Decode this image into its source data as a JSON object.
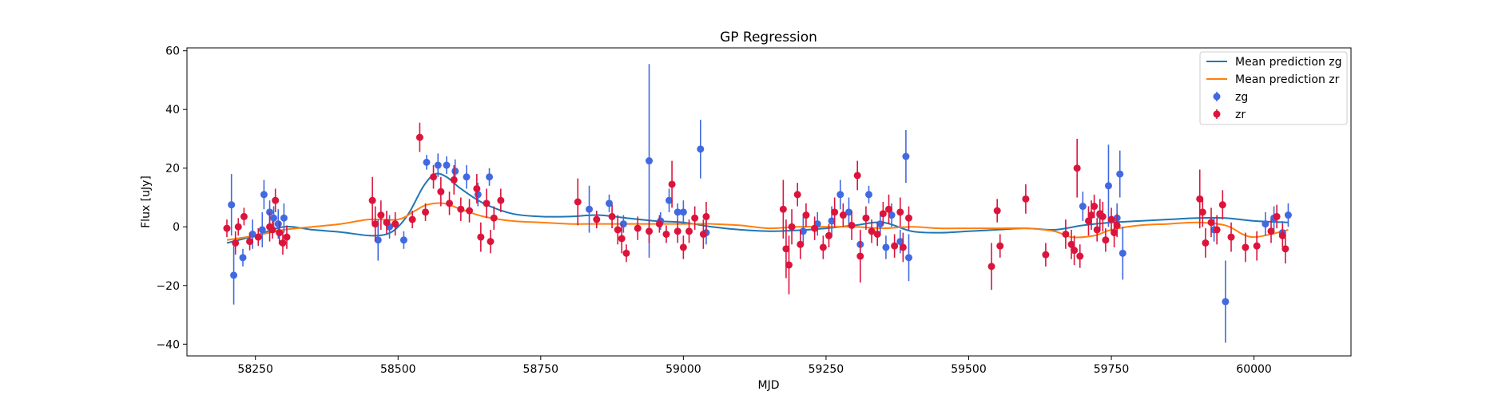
{
  "chart_data": {
    "type": "scatter",
    "title": "GP Regression",
    "xlabel": "MJD",
    "ylabel": "Flux [uJy]",
    "xlim": [
      58130,
      60170
    ],
    "ylim": [
      -44,
      61
    ],
    "xticks": [
      58250,
      58500,
      58750,
      59000,
      59250,
      59500,
      59750,
      60000
    ],
    "yticks": [
      -40,
      -20,
      0,
      20,
      40,
      60
    ],
    "grid": false,
    "legend_position": "top-right",
    "colors": {
      "mean_zg": "#1f77b4",
      "mean_zr": "#ff7f0e",
      "zg": "#4169e1",
      "zr": "#dc143c"
    },
    "mean_prediction": [
      {
        "name": "Mean prediction zg",
        "x": [
          58200,
          58250,
          58300,
          58350,
          58400,
          58450,
          58480,
          58500,
          58520,
          58545,
          58565,
          58585,
          58610,
          58650,
          58700,
          58750,
          58800,
          58850,
          58900,
          58950,
          59000,
          59050,
          59100,
          59150,
          59200,
          59250,
          59300,
          59350,
          59400,
          59450,
          59500,
          59550,
          59600,
          59650,
          59700,
          59750,
          59800,
          59850,
          59900,
          59950,
          60000,
          60060
        ],
        "y": [
          -5.5,
          -3,
          0,
          -1,
          -1.8,
          -3,
          -2.5,
          0,
          5,
          14,
          18,
          17,
          13,
          8,
          4.5,
          3.5,
          3.5,
          4,
          3,
          2,
          1.5,
          0,
          -1,
          -1.5,
          -1.2,
          -0.5,
          0.5,
          1.5,
          -1.5,
          -2,
          -1.5,
          -1,
          -0.5,
          -1,
          0.5,
          1.5,
          2,
          2.5,
          3,
          3,
          2,
          1.5
        ]
      },
      {
        "name": "Mean prediction zr",
        "x": [
          58200,
          58250,
          58300,
          58350,
          58400,
          58450,
          58500,
          58530,
          58550,
          58580,
          58610,
          58650,
          58700,
          58750,
          58800,
          58850,
          58900,
          58950,
          59000,
          59050,
          59100,
          59150,
          59200,
          59250,
          59300,
          59350,
          59400,
          59450,
          59500,
          59550,
          59600,
          59650,
          59680,
          59720,
          59750,
          59800,
          59850,
          59900,
          59950,
          59980,
          60000,
          60030,
          60060
        ],
        "y": [
          -4.5,
          -3,
          -1,
          0,
          1,
          2.5,
          2.5,
          5.5,
          7.5,
          8,
          6,
          3.5,
          2,
          1.5,
          1,
          1,
          1,
          1,
          1,
          1,
          0.5,
          -0.5,
          0,
          0,
          0,
          -0.5,
          0,
          -0.5,
          -0.5,
          -0.5,
          -0.5,
          -1.5,
          -3.5,
          -3,
          -1,
          0.5,
          1,
          1.5,
          0.5,
          -2.5,
          -3.5,
          -2.5,
          -1
        ]
      }
    ],
    "series": [
      {
        "name": "zg",
        "points": [
          [
            58208,
            7.5,
            10.5
          ],
          [
            58212,
            -16.5,
            10
          ],
          [
            58228,
            -10.5,
            3
          ],
          [
            58245,
            -2.5,
            5
          ],
          [
            58262,
            -1,
            6
          ],
          [
            58265,
            11,
            5
          ],
          [
            58275,
            5,
            4
          ],
          [
            58282,
            3,
            4
          ],
          [
            58290,
            1,
            5
          ],
          [
            58300,
            3,
            5
          ],
          [
            58465,
            -4.5,
            7
          ],
          [
            58485,
            0,
            4
          ],
          [
            58510,
            -4.5,
            3
          ],
          [
            58550,
            22,
            2.5
          ],
          [
            58570,
            21,
            4
          ],
          [
            58585,
            21,
            3
          ],
          [
            58600,
            19,
            4
          ],
          [
            58620,
            17,
            4
          ],
          [
            58640,
            11,
            4
          ],
          [
            58660,
            17,
            3
          ],
          [
            58835,
            6,
            8
          ],
          [
            58870,
            8,
            3
          ],
          [
            58895,
            1,
            3
          ],
          [
            58940,
            22.5,
            33
          ],
          [
            58960,
            2,
            3
          ],
          [
            58975,
            9,
            4
          ],
          [
            58990,
            5,
            3
          ],
          [
            59000,
            5,
            4
          ],
          [
            59030,
            26.5,
            10
          ],
          [
            59040,
            -2,
            4
          ],
          [
            59210,
            -1.5,
            5
          ],
          [
            59235,
            1,
            4
          ],
          [
            59260,
            2,
            5
          ],
          [
            59275,
            11,
            5
          ],
          [
            59290,
            5,
            5
          ],
          [
            59310,
            -6,
            4
          ],
          [
            59325,
            11,
            3
          ],
          [
            59345,
            1,
            4
          ],
          [
            59355,
            -7,
            4
          ],
          [
            59365,
            4,
            4
          ],
          [
            59380,
            -5,
            4
          ],
          [
            59390,
            24,
            9
          ],
          [
            59395,
            -10.5,
            8
          ],
          [
            59700,
            7,
            5
          ],
          [
            59730,
            4,
            5
          ],
          [
            59745,
            14,
            14
          ],
          [
            59760,
            3,
            5
          ],
          [
            59765,
            18,
            8
          ],
          [
            59770,
            -9,
            9
          ],
          [
            59930,
            -1,
            4
          ],
          [
            59950,
            -25.5,
            14
          ],
          [
            60020,
            1,
            4
          ],
          [
            60035,
            3,
            4
          ],
          [
            60050,
            -2,
            4
          ],
          [
            60060,
            4,
            4
          ]
        ]
      },
      {
        "name": "zr",
        "points": [
          [
            58200,
            -0.5,
            3
          ],
          [
            58215,
            -5.5,
            4
          ],
          [
            58220,
            0,
            3
          ],
          [
            58230,
            3.5,
            3
          ],
          [
            58240,
            -5,
            3
          ],
          [
            58255,
            -3.5,
            3
          ],
          [
            58275,
            0,
            5
          ],
          [
            58280,
            -1,
            3
          ],
          [
            58285,
            9,
            4
          ],
          [
            58292,
            -2,
            4
          ],
          [
            58298,
            -5.5,
            4
          ],
          [
            58305,
            -3.5,
            4
          ],
          [
            58455,
            9,
            8
          ],
          [
            58460,
            1,
            6
          ],
          [
            58470,
            4,
            5
          ],
          [
            58480,
            1.5,
            4
          ],
          [
            58495,
            1,
            4
          ],
          [
            58525,
            2.5,
            3
          ],
          [
            58538,
            30.5,
            5
          ],
          [
            58548,
            5,
            3
          ],
          [
            58562,
            17,
            4
          ],
          [
            58575,
            12,
            5
          ],
          [
            58590,
            8,
            4
          ],
          [
            58598,
            16,
            5
          ],
          [
            58610,
            6,
            4
          ],
          [
            58625,
            5.5,
            4
          ],
          [
            58638,
            13,
            5
          ],
          [
            58645,
            -3.5,
            5
          ],
          [
            58655,
            8,
            5
          ],
          [
            58662,
            -5,
            4
          ],
          [
            58668,
            3,
            4
          ],
          [
            58680,
            9,
            4
          ],
          [
            58815,
            8.5,
            8
          ],
          [
            58848,
            2.5,
            3
          ],
          [
            58875,
            3.5,
            4
          ],
          [
            58885,
            -1,
            5
          ],
          [
            58892,
            -4,
            5
          ],
          [
            58900,
            -9,
            3
          ],
          [
            58920,
            -0.5,
            4
          ],
          [
            58940,
            -1.5,
            4
          ],
          [
            58958,
            1,
            3
          ],
          [
            58970,
            -2.5,
            3
          ],
          [
            58980,
            14.5,
            8
          ],
          [
            58990,
            -1.5,
            4
          ],
          [
            59000,
            -7,
            4
          ],
          [
            59010,
            -1.5,
            4
          ],
          [
            59020,
            3,
            4
          ],
          [
            59035,
            -2.5,
            5
          ],
          [
            59040,
            3.5,
            5
          ],
          [
            59175,
            6,
            10
          ],
          [
            59180,
            -7.5,
            10
          ],
          [
            59185,
            -13,
            10
          ],
          [
            59190,
            0,
            6
          ],
          [
            59200,
            11,
            4
          ],
          [
            59205,
            -6,
            5
          ],
          [
            59215,
            4,
            4
          ],
          [
            59230,
            -0.5,
            4
          ],
          [
            59245,
            -7,
            4
          ],
          [
            59255,
            -3,
            4
          ],
          [
            59265,
            5,
            5
          ],
          [
            59280,
            4,
            4
          ],
          [
            59295,
            0.5,
            5
          ],
          [
            59305,
            17.5,
            5
          ],
          [
            59310,
            -10,
            9
          ],
          [
            59320,
            3,
            4
          ],
          [
            59330,
            -1.5,
            4
          ],
          [
            59340,
            -2.5,
            4
          ],
          [
            59350,
            4.5,
            4
          ],
          [
            59360,
            6,
            5
          ],
          [
            59370,
            -6.5,
            4
          ],
          [
            59380,
            5,
            5
          ],
          [
            59385,
            -7,
            5
          ],
          [
            59395,
            3,
            4
          ],
          [
            59540,
            -13.5,
            8
          ],
          [
            59550,
            5.5,
            4
          ],
          [
            59555,
            -6.5,
            4
          ],
          [
            59600,
            9.5,
            5
          ],
          [
            59635,
            -9.5,
            4
          ],
          [
            59670,
            -2.5,
            5
          ],
          [
            59680,
            -6,
            5
          ],
          [
            59685,
            -8,
            5
          ],
          [
            59690,
            20,
            10
          ],
          [
            59695,
            -10,
            4
          ],
          [
            59710,
            2,
            5
          ],
          [
            59715,
            4,
            5
          ],
          [
            59720,
            7,
            4
          ],
          [
            59725,
            -1,
            4
          ],
          [
            59730,
            4.5,
            5
          ],
          [
            59735,
            3.5,
            5
          ],
          [
            59740,
            -4.5,
            4
          ],
          [
            59750,
            2.5,
            4
          ],
          [
            59755,
            -2,
            5
          ],
          [
            59760,
            0.5,
            4
          ],
          [
            59905,
            9.5,
            10
          ],
          [
            59910,
            5,
            5
          ],
          [
            59915,
            -5.5,
            5
          ],
          [
            59925,
            1.5,
            5
          ],
          [
            59935,
            -1,
            5
          ],
          [
            59945,
            7.5,
            5
          ],
          [
            59960,
            -3.5,
            5
          ],
          [
            59985,
            -7,
            5
          ],
          [
            60005,
            -6.5,
            5
          ],
          [
            60030,
            -1.5,
            4
          ],
          [
            60040,
            3.5,
            4
          ],
          [
            60050,
            -3,
            4
          ],
          [
            60055,
            -7.5,
            5
          ]
        ]
      }
    ]
  }
}
